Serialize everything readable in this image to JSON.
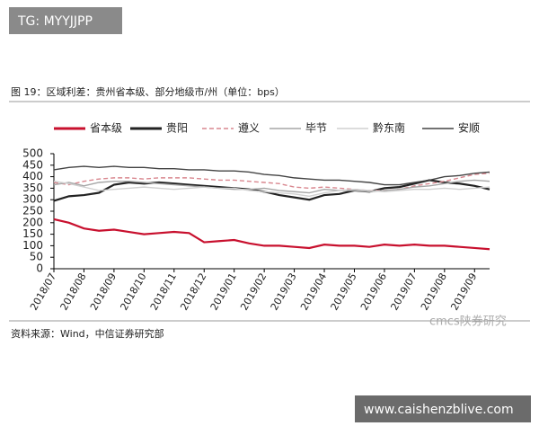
{
  "watermark_top": "TG: MYYJJPP",
  "watermark_bottom": "www.caishenzblive.com",
  "logo_text": "cmcs陕券研究",
  "source": "资料来源：Wind，中信证券研究部",
  "chart_data": {
    "type": "line",
    "title": "图 19：区域利差：贵州省本级、部分地级市/州（单位：bps）",
    "categories": [
      "2018/07",
      null,
      "2018/08",
      null,
      "2018/09",
      null,
      "2018/10",
      null,
      "2018/11",
      null,
      "2018/12",
      null,
      "2019/01",
      null,
      "2019/02",
      null,
      "2019/03",
      null,
      "2019/04",
      null,
      "2019/05",
      null,
      "2019/06",
      null,
      "2019/07",
      null,
      "2019/08",
      null,
      "2019/09",
      null
    ],
    "ylim": [
      0,
      500
    ],
    "yticks": [
      0,
      50,
      100,
      150,
      200,
      250,
      300,
      350,
      400,
      450,
      500
    ],
    "legend": "top",
    "series": [
      {
        "name": "省本级",
        "color": "#c8102e",
        "values": [
          215,
          200,
          175,
          165,
          170,
          160,
          150,
          155,
          160,
          155,
          115,
          120,
          125,
          110,
          100,
          100,
          95,
          90,
          105,
          100,
          100,
          95,
          105,
          100,
          105,
          100,
          100,
          95,
          90,
          85
        ]
      },
      {
        "name": "贵阳",
        "color": "#222222",
        "values": [
          295,
          315,
          320,
          330,
          365,
          375,
          370,
          375,
          370,
          365,
          360,
          355,
          350,
          345,
          335,
          320,
          310,
          300,
          320,
          325,
          340,
          335,
          350,
          355,
          370,
          385,
          375,
          370,
          360,
          345
        ]
      },
      {
        "name": "遵义",
        "color": "#d9878f",
        "dashed": true,
        "values": [
          375,
          365,
          380,
          390,
          395,
          395,
          390,
          395,
          395,
          395,
          390,
          385,
          385,
          380,
          375,
          370,
          355,
          350,
          355,
          350,
          345,
          340,
          340,
          345,
          360,
          370,
          380,
          395,
          410,
          415
        ]
      },
      {
        "name": "毕节",
        "color": "#a6a6a6",
        "values": [
          365,
          375,
          360,
          375,
          380,
          380,
          375,
          370,
          365,
          360,
          355,
          350,
          345,
          345,
          350,
          340,
          335,
          330,
          345,
          340,
          340,
          335,
          340,
          345,
          355,
          360,
          370,
          380,
          385,
          380
        ]
      },
      {
        "name": "黔东南",
        "color": "#d0d0d0",
        "values": [
          380,
          370,
          355,
          340,
          345,
          350,
          355,
          350,
          345,
          350,
          355,
          350,
          350,
          340,
          335,
          330,
          325,
          315,
          330,
          340,
          345,
          340,
          335,
          340,
          345,
          345,
          350,
          345,
          350,
          355
        ]
      },
      {
        "name": "安顺",
        "color": "#444444",
        "values": [
          430,
          440,
          445,
          440,
          445,
          440,
          440,
          435,
          435,
          430,
          430,
          425,
          425,
          420,
          410,
          405,
          395,
          390,
          385,
          385,
          380,
          375,
          365,
          365,
          375,
          385,
          400,
          405,
          415,
          420
        ]
      }
    ]
  }
}
